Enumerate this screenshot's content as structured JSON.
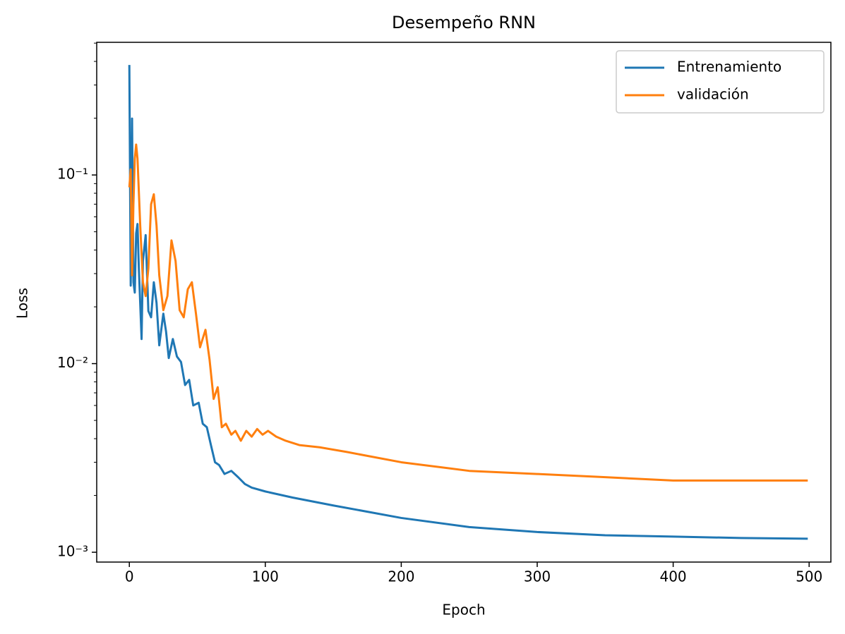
{
  "chart_data": {
    "type": "line",
    "title": "Desempeño RNN",
    "xlabel": "Epoch",
    "ylabel": "Loss",
    "yscale": "log",
    "legend": "upper right",
    "grid": false,
    "xlim": [
      -24,
      516
    ],
    "ylim": [
      0.000887,
      0.505
    ],
    "xticks": [
      0,
      100,
      200,
      300,
      400,
      500
    ],
    "yticks": [
      {
        "value": 0.001,
        "label": "10⁻³"
      },
      {
        "value": 0.01,
        "label": "10⁻²"
      },
      {
        "value": 0.1,
        "label": "10⁻¹"
      }
    ],
    "yminorticks": [
      0.002,
      0.003,
      0.004,
      0.005,
      0.006,
      0.007,
      0.008,
      0.009,
      0.02,
      0.03,
      0.04,
      0.05,
      0.06,
      0.07,
      0.08,
      0.09,
      0.2,
      0.3,
      0.4,
      0.5
    ],
    "series": [
      {
        "name": "Entrenamiento",
        "color": "#1f77b4",
        "x": [
          0,
          1,
          2,
          3,
          4,
          5,
          6,
          7,
          9,
          10,
          12,
          14,
          16,
          18,
          20,
          22,
          25,
          27,
          29,
          32,
          35,
          38,
          41,
          44,
          47,
          51,
          54,
          57,
          60,
          63,
          66,
          70,
          75,
          80,
          85,
          90,
          100,
          120,
          150,
          200,
          250,
          300,
          350,
          400,
          450,
          499
        ],
        "values": [
          0.383,
          0.0259,
          0.199,
          0.027,
          0.0238,
          0.049,
          0.055,
          0.032,
          0.0135,
          0.035,
          0.048,
          0.019,
          0.0176,
          0.027,
          0.021,
          0.0125,
          0.0184,
          0.0148,
          0.0107,
          0.0135,
          0.0109,
          0.0102,
          0.0077,
          0.0082,
          0.006,
          0.0062,
          0.0048,
          0.0046,
          0.0037,
          0.003,
          0.0029,
          0.0026,
          0.0027,
          0.0025,
          0.0023,
          0.0022,
          0.0021,
          0.00195,
          0.00177,
          0.00152,
          0.00136,
          0.00128,
          0.00123,
          0.00121,
          0.00119,
          0.00118
        ]
      },
      {
        "name": "validación",
        "color": "#ff7f0e",
        "x": [
          0,
          1,
          2,
          3,
          4,
          5,
          6,
          8,
          10,
          12,
          14,
          16,
          18,
          20,
          22,
          25,
          28,
          31,
          34,
          37,
          40,
          43,
          46,
          49,
          52,
          56,
          59,
          62,
          65,
          68,
          71,
          75,
          78,
          82,
          86,
          90,
          94,
          98,
          102,
          108,
          115,
          125,
          140,
          160,
          200,
          250,
          300,
          350,
          400,
          450,
          499
        ],
        "values": [
          0.086,
          0.107,
          0.0294,
          0.07,
          0.122,
          0.145,
          0.122,
          0.054,
          0.027,
          0.0228,
          0.032,
          0.07,
          0.079,
          0.054,
          0.0294,
          0.0192,
          0.0228,
          0.045,
          0.035,
          0.0192,
          0.0176,
          0.0248,
          0.027,
          0.0184,
          0.0122,
          0.0151,
          0.0105,
          0.0065,
          0.0075,
          0.0046,
          0.0048,
          0.0042,
          0.0044,
          0.0039,
          0.0044,
          0.0041,
          0.0045,
          0.0042,
          0.0044,
          0.0041,
          0.0039,
          0.0037,
          0.0036,
          0.0034,
          0.003,
          0.0027,
          0.0026,
          0.0025,
          0.0024,
          0.0024,
          0.0024
        ]
      }
    ]
  }
}
